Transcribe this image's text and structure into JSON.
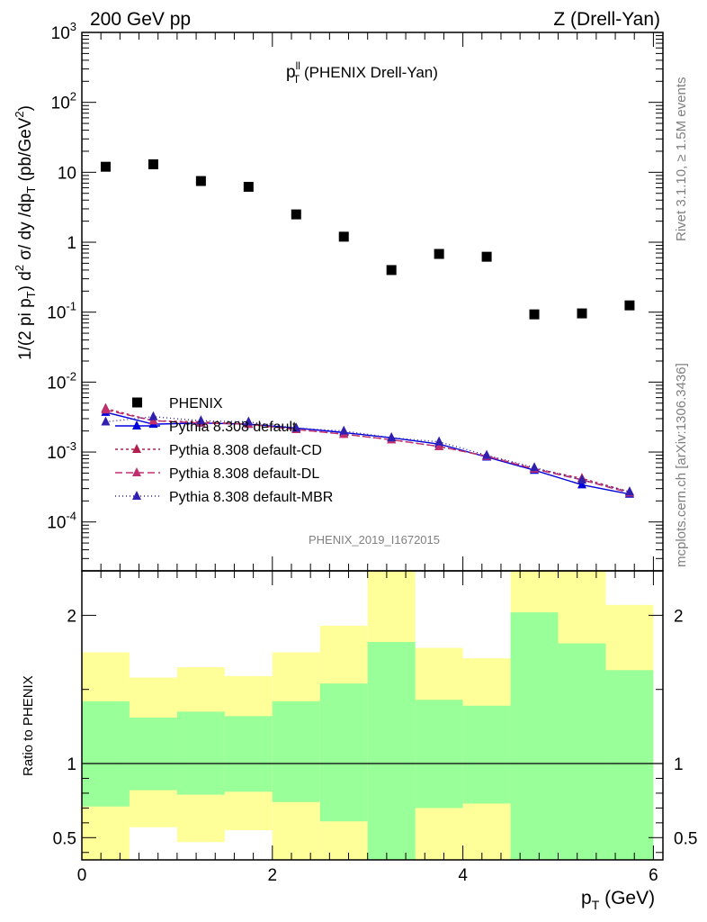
{
  "header": {
    "left": "200 GeV pp",
    "right": "Z (Drell-Yan)"
  },
  "side_labels": {
    "rivet": "Rivet 3.1.10, ≥ 1.5M events",
    "mcplots": "mcplots.cern.ch [arXiv:1306.3436]"
  },
  "analysis_id": "PHENIX_2019_I1672015",
  "chart_data": [
    {
      "type": "scatter",
      "title_main": "p",
      "title_sup": "ll",
      "title_sub": "T",
      "title_rest": " (PHENIX Drell-Yan)",
      "ylabel": "1/(2 pi p_T) d^2 σ/ dy /dp_T (pb/GeV^2)",
      "yscale": "log",
      "ylim": [
        2e-05,
        1000
      ],
      "xlim": [
        0,
        6.1
      ],
      "ytick_labels": [
        "10^-4",
        "10^-3",
        "10^-2",
        "10^-1",
        "1",
        "10",
        "10^2",
        "10^3"
      ],
      "x": [
        0.25,
        0.75,
        1.25,
        1.75,
        2.25,
        2.75,
        3.25,
        3.75,
        4.25,
        4.75,
        5.25,
        5.75
      ],
      "bin_edges": [
        0,
        0.5,
        1,
        1.5,
        2,
        2.5,
        3,
        3.5,
        4,
        4.5,
        5,
        5.5,
        6
      ],
      "series": [
        {
          "name": "PHENIX",
          "color": "#000000",
          "marker": "square",
          "values": [
            12,
            13,
            7.5,
            6.2,
            2.5,
            1.2,
            0.4,
            0.68,
            0.62,
            0.093,
            0.096,
            0.125
          ]
        },
        {
          "name": "Pythia 8.308 default",
          "color": "#0000dd",
          "dash": "solid",
          "values": [
            0.0037,
            0.0025,
            0.0026,
            0.0025,
            0.0022,
            0.0019,
            0.0016,
            0.0013,
            0.00085,
            0.00055,
            0.00034,
            0.00025
          ]
        },
        {
          "name": "Pythia 8.308 default-CD",
          "color": "#b0204f",
          "dash": "3,3",
          "values": [
            0.0042,
            0.0028,
            0.0027,
            0.0025,
            0.0021,
            0.0018,
            0.0015,
            0.0012,
            0.00088,
            0.00058,
            0.00042,
            0.00027
          ]
        },
        {
          "name": "Pythia 8.308 default-DL",
          "color": "#c03070",
          "dash": "8,4",
          "values": [
            0.004,
            0.0028,
            0.0026,
            0.0025,
            0.0021,
            0.0018,
            0.0015,
            0.0012,
            0.00087,
            0.00057,
            0.0004,
            0.00026
          ]
        },
        {
          "name": "Pythia 8.308 default-MBR",
          "color": "#3020b0",
          "dash": "1,3",
          "values": [
            0.0027,
            0.0032,
            0.0028,
            0.0027,
            0.0022,
            0.002,
            0.0016,
            0.0014,
            0.0009,
            0.0006,
            0.0004,
            0.00027
          ]
        }
      ]
    },
    {
      "type": "area",
      "ylabel": "Ratio to PHENIX",
      "xlabel_main": "p",
      "xlabel_sub": "T",
      "xlabel_rest": " (GeV)",
      "ylim": [
        0.35,
        2.3
      ],
      "yticks": [
        0.5,
        1,
        2
      ],
      "ytick_labels": [
        "0.5",
        "1",
        "2"
      ],
      "xticks": [
        0,
        2,
        4,
        6
      ],
      "xtick_labels": [
        "0",
        "2",
        "4",
        "6"
      ],
      "bin_edges": [
        0,
        0.5,
        1,
        1.5,
        2,
        2.5,
        3,
        3.5,
        4,
        4.5,
        5,
        5.5,
        6
      ],
      "band_yellow": [
        [
          0.35,
          1.75
        ],
        [
          0.57,
          1.58
        ],
        [
          0.47,
          1.65
        ],
        [
          0.55,
          1.59
        ],
        [
          0.35,
          1.75
        ],
        [
          0.35,
          1.93
        ],
        [
          0.35,
          2.35
        ],
        [
          0.35,
          1.78
        ],
        [
          0.35,
          1.71
        ],
        [
          0.35,
          2.35
        ],
        [
          0.35,
          2.35
        ],
        [
          0.41,
          2.07
        ]
      ],
      "band_green": [
        [
          0.71,
          1.42
        ],
        [
          0.82,
          1.31
        ],
        [
          0.79,
          1.35
        ],
        [
          0.81,
          1.32
        ],
        [
          0.74,
          1.42
        ],
        [
          0.61,
          1.54
        ],
        [
          0.35,
          1.82
        ],
        [
          0.7,
          1.43
        ],
        [
          0.73,
          1.39
        ],
        [
          0.35,
          2.02
        ],
        [
          0.35,
          1.81
        ],
        [
          0.35,
          1.63
        ]
      ],
      "band_colors": {
        "yellow": "#ffff99",
        "green": "#99ff99"
      }
    }
  ]
}
